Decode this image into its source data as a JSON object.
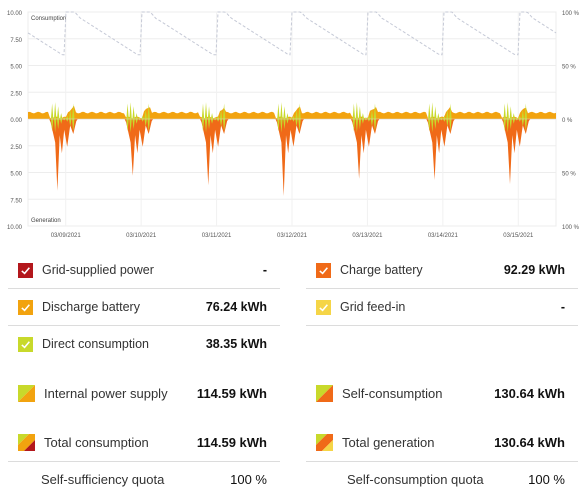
{
  "chart_data": {
    "type": "area",
    "top_label": "Consumption",
    "bottom_label": "Generation",
    "left_axis_ticks": [
      "10.00",
      "7.50",
      "5.00",
      "2.50",
      "0.00",
      "2.50",
      "5.00",
      "7.50",
      "10.00"
    ],
    "right_axis_ticks": [
      "100 %",
      "50 %",
      "0 %",
      "50 %",
      "100 %"
    ],
    "x_ticks": [
      "03/09/2021",
      "03/10/2021",
      "03/11/2021",
      "03/12/2021",
      "03/13/2021",
      "03/14/2021",
      "03/15/2021"
    ],
    "ylim_kw": [
      -10,
      10
    ],
    "grid": true,
    "series": [
      {
        "name": "Discharge battery",
        "color": "#f2a30f",
        "kind": "area-above-zero",
        "typical_kw": 0.6
      },
      {
        "name": "Direct consumption",
        "color": "#c8d92b",
        "kind": "midday-spikes",
        "peak_kw": 1.6
      },
      {
        "name": "Charge battery",
        "color": "#f06a18",
        "kind": "area-below-zero",
        "daily_peak_kw": [
          6.7,
          5.3,
          6.2,
          7.2,
          5.6,
          5.7,
          6.1
        ]
      },
      {
        "name": "Self-sufficiency quota",
        "color": "#c5c9d6",
        "kind": "dashed-line-right-axis",
        "range_percent": [
          60,
          100
        ]
      }
    ]
  },
  "legend": {
    "left": [
      {
        "icon": "check",
        "color": "#b3171c",
        "label": "Grid-supplied power",
        "value": "-"
      },
      {
        "icon": "check",
        "color": "#f2a30f",
        "label": "Discharge battery",
        "value": "76.24 kWh"
      },
      {
        "icon": "check",
        "color": "#c8d92b",
        "label": "Direct consumption",
        "value": "38.35 kWh"
      }
    ],
    "right": [
      {
        "icon": "check",
        "color": "#f06a18",
        "label": "Charge battery",
        "value": "92.29 kWh"
      },
      {
        "icon": "check",
        "color": "#f5d547",
        "label": "Grid feed-in",
        "value": "-"
      }
    ]
  },
  "summary": {
    "left": [
      {
        "label": "Internal power supply",
        "value": "114.59 kWh",
        "colors": [
          "#c8d92b",
          "#f2a30f"
        ]
      },
      {
        "label": "Total consumption",
        "value": "114.59 kWh",
        "colors": [
          "#c8d92b",
          "#f2a30f",
          "#b3171c"
        ]
      },
      {
        "label": "Self-sufficiency quota",
        "value": "100 %"
      }
    ],
    "right": [
      {
        "label": "Self-consumption",
        "value": "130.64 kWh",
        "colors": [
          "#c8d92b",
          "#f06a18"
        ]
      },
      {
        "label": "Total generation",
        "value": "130.64 kWh",
        "colors": [
          "#c8d92b",
          "#f06a18",
          "#f5d547"
        ]
      },
      {
        "label": "Self-consumption quota",
        "value": "100 %"
      }
    ]
  }
}
